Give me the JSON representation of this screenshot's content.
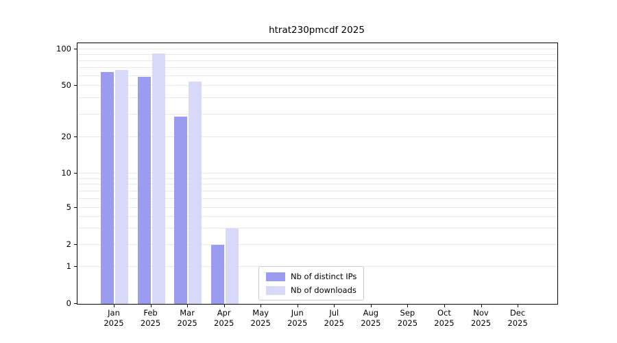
{
  "title": "htrat230pmcdf 2025",
  "chart_data": {
    "type": "bar",
    "title": "htrat230pmcdf 2025",
    "year": "2025",
    "categories": [
      "Jan",
      "Feb",
      "Mar",
      "Apr",
      "May",
      "Jun",
      "Jul",
      "Aug",
      "Sep",
      "Oct",
      "Nov",
      "Dec"
    ],
    "series": [
      {
        "name": "Nb of distinct IPs",
        "color": "#9b9bef",
        "values": [
          65,
          59,
          29,
          2,
          0,
          0,
          0,
          0,
          0,
          0,
          0,
          0
        ]
      },
      {
        "name": "Nb of downloads",
        "color": "#d8d8f8",
        "values": [
          68,
          93,
          54,
          3,
          0,
          0,
          0,
          0,
          0,
          0,
          0,
          0
        ]
      }
    ],
    "yscale": "symlog",
    "yticks": [
      0,
      1,
      2,
      5,
      10,
      20,
      50,
      100
    ],
    "ylim": [
      0,
      100
    ],
    "grid": true,
    "legend_position": "lower center"
  }
}
